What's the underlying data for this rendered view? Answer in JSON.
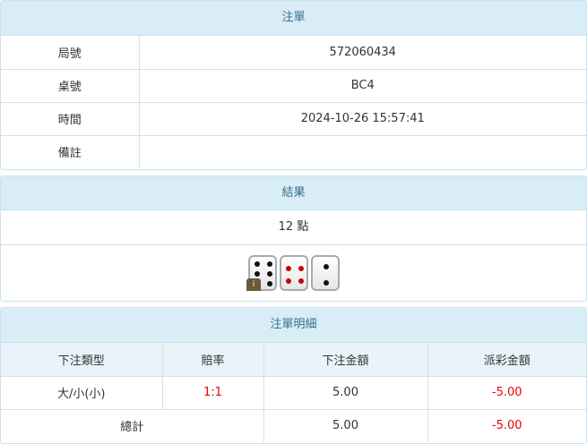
{
  "order": {
    "title": "注單",
    "rows": [
      {
        "label": "局號",
        "value": "572060434"
      },
      {
        "label": "桌號",
        "value": "BC4"
      },
      {
        "label": "時間",
        "value": "2024-10-26 15:57:41"
      },
      {
        "label": "備註",
        "value": ""
      }
    ]
  },
  "result": {
    "title": "結果",
    "points": "12 點",
    "dice": [
      6,
      4,
      2
    ],
    "info_badge": "i"
  },
  "detail": {
    "title": "注單明細",
    "headers": [
      "下注類型",
      "賠率",
      "下注金額",
      "派彩金額"
    ],
    "rows": [
      {
        "type": "大/小(小)",
        "odds": "1:1",
        "bet": "5.00",
        "payout": "-5.00"
      }
    ],
    "total": {
      "label": "總計",
      "bet": "5.00",
      "payout": "-5.00"
    }
  },
  "colors": {
    "header_bg": "#d9edf7",
    "header_text": "#31708f",
    "negative": "#ee0000"
  }
}
